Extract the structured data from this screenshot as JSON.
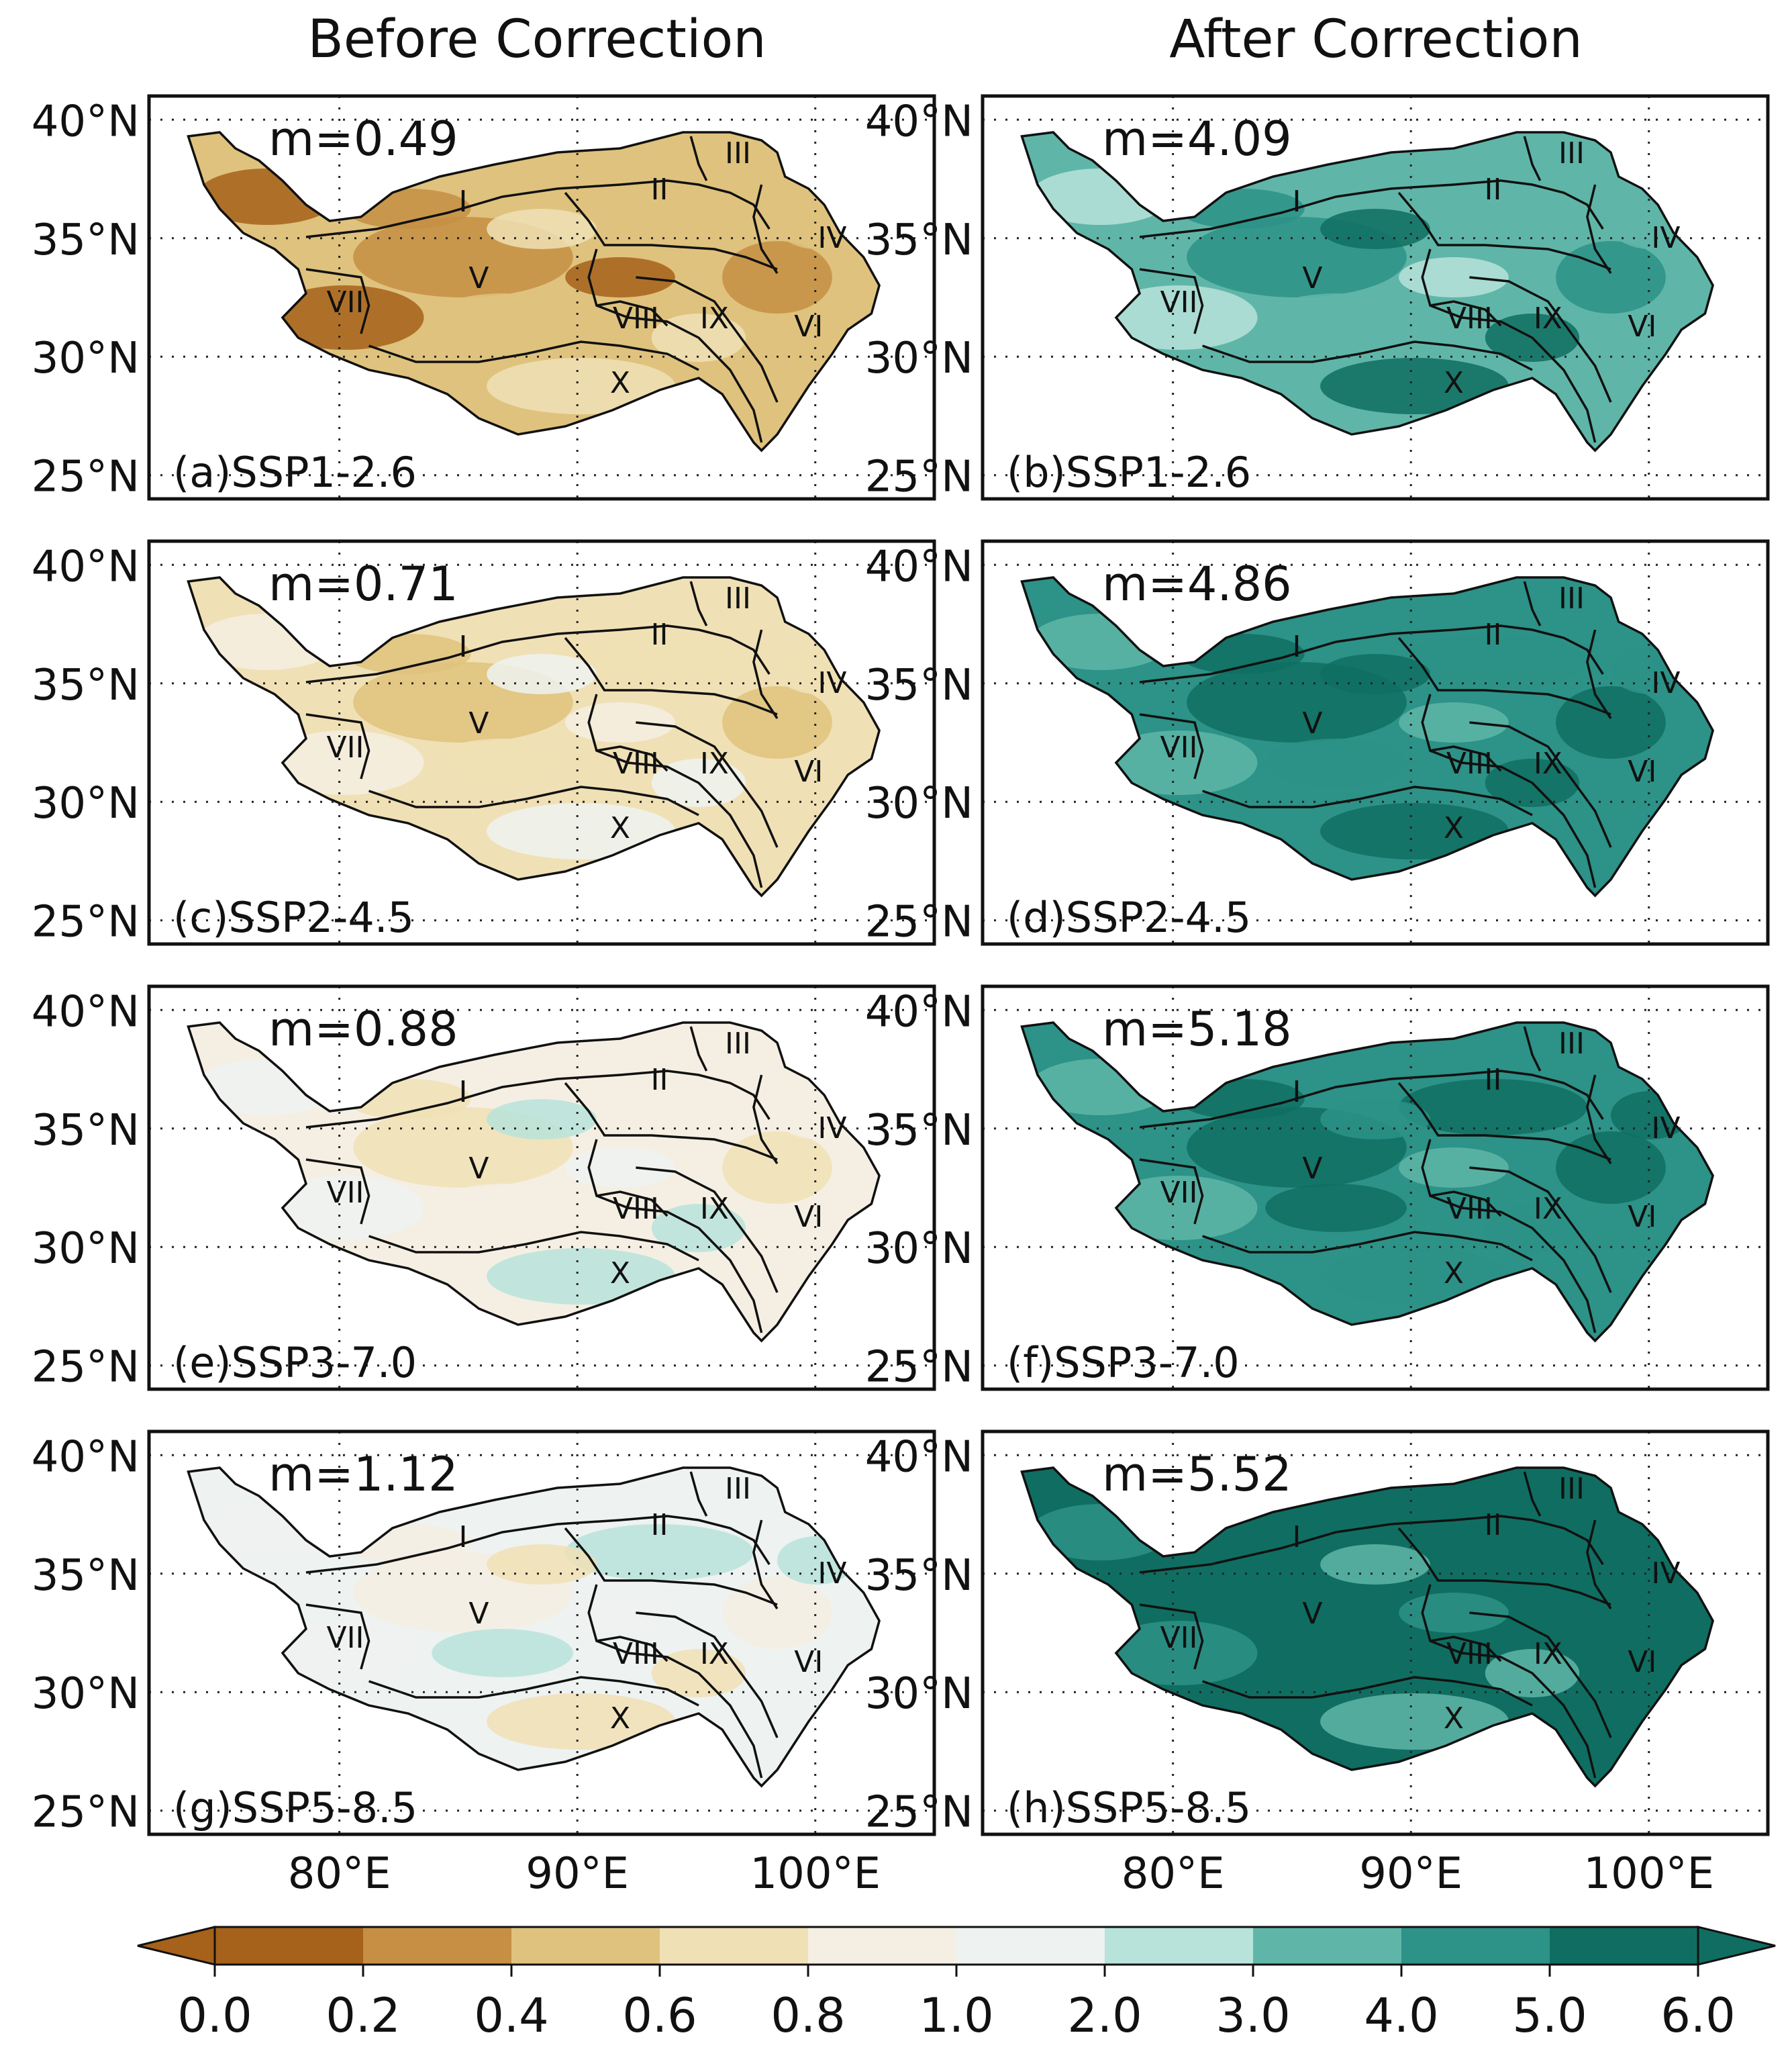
{
  "column_titles": [
    "Before Correction",
    "After Correction"
  ],
  "lat_labels": [
    "40°N",
    "35°N",
    "30°N",
    "25°N"
  ],
  "lon_labels": [
    "80°E",
    "90°E",
    "100°E"
  ],
  "region_labels": [
    "I",
    "II",
    "III",
    "IV",
    "V",
    "VI",
    "VII",
    "VIII",
    "IX",
    "X"
  ],
  "panels": [
    {
      "id": "a",
      "label": "(a)SSP1-2.6",
      "m": "m=0.49",
      "column": "before",
      "base_class": 2,
      "variation": [
        1,
        0,
        2,
        3
      ]
    },
    {
      "id": "b",
      "label": "(b)SSP1-2.6",
      "m": "m=4.09",
      "column": "after",
      "base_class": 7,
      "variation": [
        8,
        6,
        7,
        9
      ]
    },
    {
      "id": "c",
      "label": "(c)SSP2-4.5",
      "m": "m=0.71",
      "column": "before",
      "base_class": 3,
      "variation": [
        2,
        4,
        3,
        5
      ]
    },
    {
      "id": "d",
      "label": "(d)SSP2-4.5",
      "m": "m=4.86",
      "column": "after",
      "base_class": 8,
      "variation": [
        9,
        7,
        8,
        9
      ]
    },
    {
      "id": "e",
      "label": "(e)SSP3-7.0",
      "m": "m=0.88",
      "column": "before",
      "base_class": 4,
      "variation": [
        3,
        5,
        4,
        6
      ]
    },
    {
      "id": "f",
      "label": "(f)SSP3-7.0",
      "m": "m=5.18",
      "column": "after",
      "base_class": 8,
      "variation": [
        9,
        7,
        9,
        8
      ]
    },
    {
      "id": "g",
      "label": "(g)SSP5-8.5",
      "m": "m=1.12",
      "column": "before",
      "base_class": 5,
      "variation": [
        4,
        5,
        6,
        3
      ]
    },
    {
      "id": "h",
      "label": "(h)SSP5-8.5",
      "m": "m=5.52",
      "column": "after",
      "base_class": 9,
      "variation": [
        9,
        8,
        9,
        7
      ]
    }
  ],
  "colorbar": {
    "ticks": [
      "0.0",
      "0.2",
      "0.4",
      "0.6",
      "0.8",
      "1.0",
      "2.0",
      "3.0",
      "4.0",
      "5.0",
      "6.0"
    ],
    "colors": [
      "#a6611a",
      "#c68f43",
      "#dfc27d",
      "#f0e0b5",
      "#f5efe3",
      "#eef2f1",
      "#b7e3da",
      "#5fb6a8",
      "#2d9287",
      "#0f6e61"
    ],
    "extend": "both"
  }
}
